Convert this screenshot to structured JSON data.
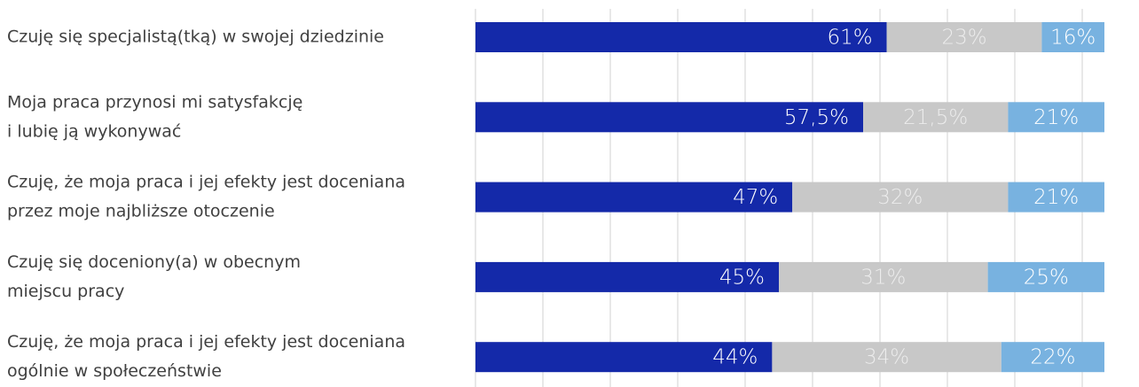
{
  "chart_data": {
    "type": "stacked-bar-horizontal",
    "categories": [
      [
        "Czuję się specjalistą(tką) w swojej dziedzinie"
      ],
      [
        "Moja praca przynosi mi satysfakcję",
        "i lubię ją wykonywać"
      ],
      [
        "Czuję, że moja praca i jej efekty jest doceniana",
        "przez moje najbliższe otoczenie"
      ],
      [
        "Czuję się doceniony(a) w obecnym",
        "miejscu pracy"
      ],
      [
        "Czuję, że moja praca i jej efekty jest doceniana",
        "ogólnie w społeczeństwie"
      ]
    ],
    "series": [
      {
        "color": "#1429a9",
        "label_color": "#ffffff",
        "values": [
          61,
          57.5,
          47,
          45,
          44
        ],
        "value_labels": [
          "61%",
          "57,5%",
          "47%",
          "45%",
          "44%"
        ]
      },
      {
        "color": "#c8c8c8",
        "label_color": "#ececec",
        "values": [
          23,
          21.5,
          32,
          31,
          34
        ],
        "value_labels": [
          "23%",
          "21,5%",
          "32%",
          "31%",
          "34%"
        ]
      },
      {
        "color": "#78b2e0",
        "label_color": "#ffffff",
        "values": [
          16,
          21,
          21,
          25,
          22
        ],
        "value_labels": [
          "16%",
          "21%",
          "21%",
          "25%",
          "22%"
        ]
      }
    ],
    "xlim": [
      0,
      100
    ],
    "xticks": [
      0,
      10,
      20,
      30,
      40,
      50,
      60,
      70,
      80,
      90
    ],
    "grid": true
  }
}
